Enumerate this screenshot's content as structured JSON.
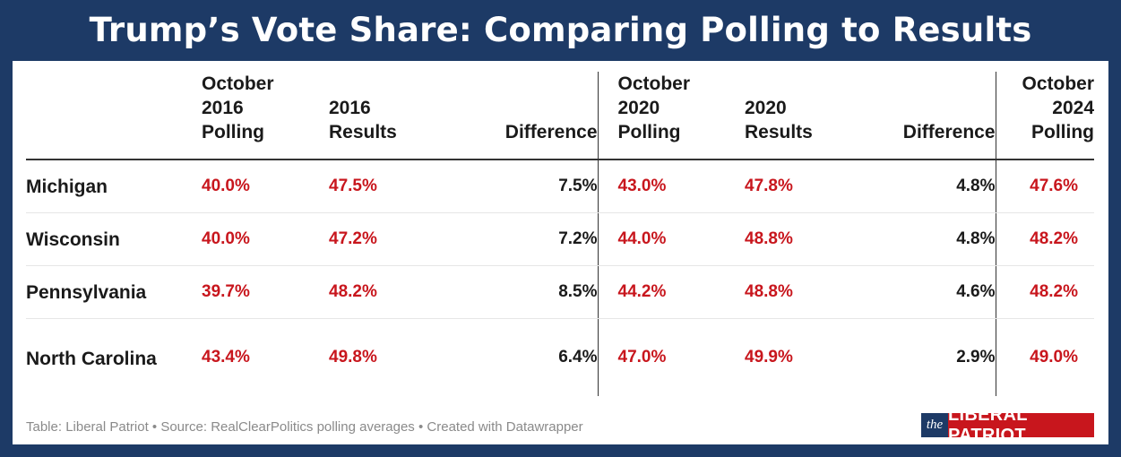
{
  "title": "Trump’s Vote Share: Comparing Polling to Results",
  "chart_data": {
    "type": "table",
    "columns": [
      "",
      "October 2016 Polling",
      "2016 Results",
      "Difference",
      "October 2020 Polling",
      "2020 Results",
      "Difference",
      "October 2024 Polling"
    ],
    "rows": [
      [
        "Michigan",
        "40.0%",
        "47.5%",
        "7.5%",
        "43.0%",
        "47.8%",
        "4.8%",
        "47.6%"
      ],
      [
        "Wisconsin",
        "40.0%",
        "47.2%",
        "7.2%",
        "44.0%",
        "48.8%",
        "4.8%",
        "48.2%"
      ],
      [
        "Pennsylvania",
        "39.7%",
        "48.2%",
        "8.5%",
        "44.2%",
        "48.8%",
        "4.6%",
        "48.2%"
      ],
      [
        "North Carolina",
        "43.4%",
        "49.8%",
        "6.4%",
        "47.0%",
        "49.9%",
        "2.9%",
        "49.0%"
      ]
    ],
    "colors": {
      "polling_and_results": "#c8161d",
      "difference": "#1a1a1a",
      "background": "#1d3a66"
    }
  },
  "footer": "Table: Liberal Patriot • Source: RealClearPolitics polling averages • Created with Datawrapper",
  "logo": {
    "prefix": "the",
    "name": "LIBERAL PATRIOT"
  }
}
